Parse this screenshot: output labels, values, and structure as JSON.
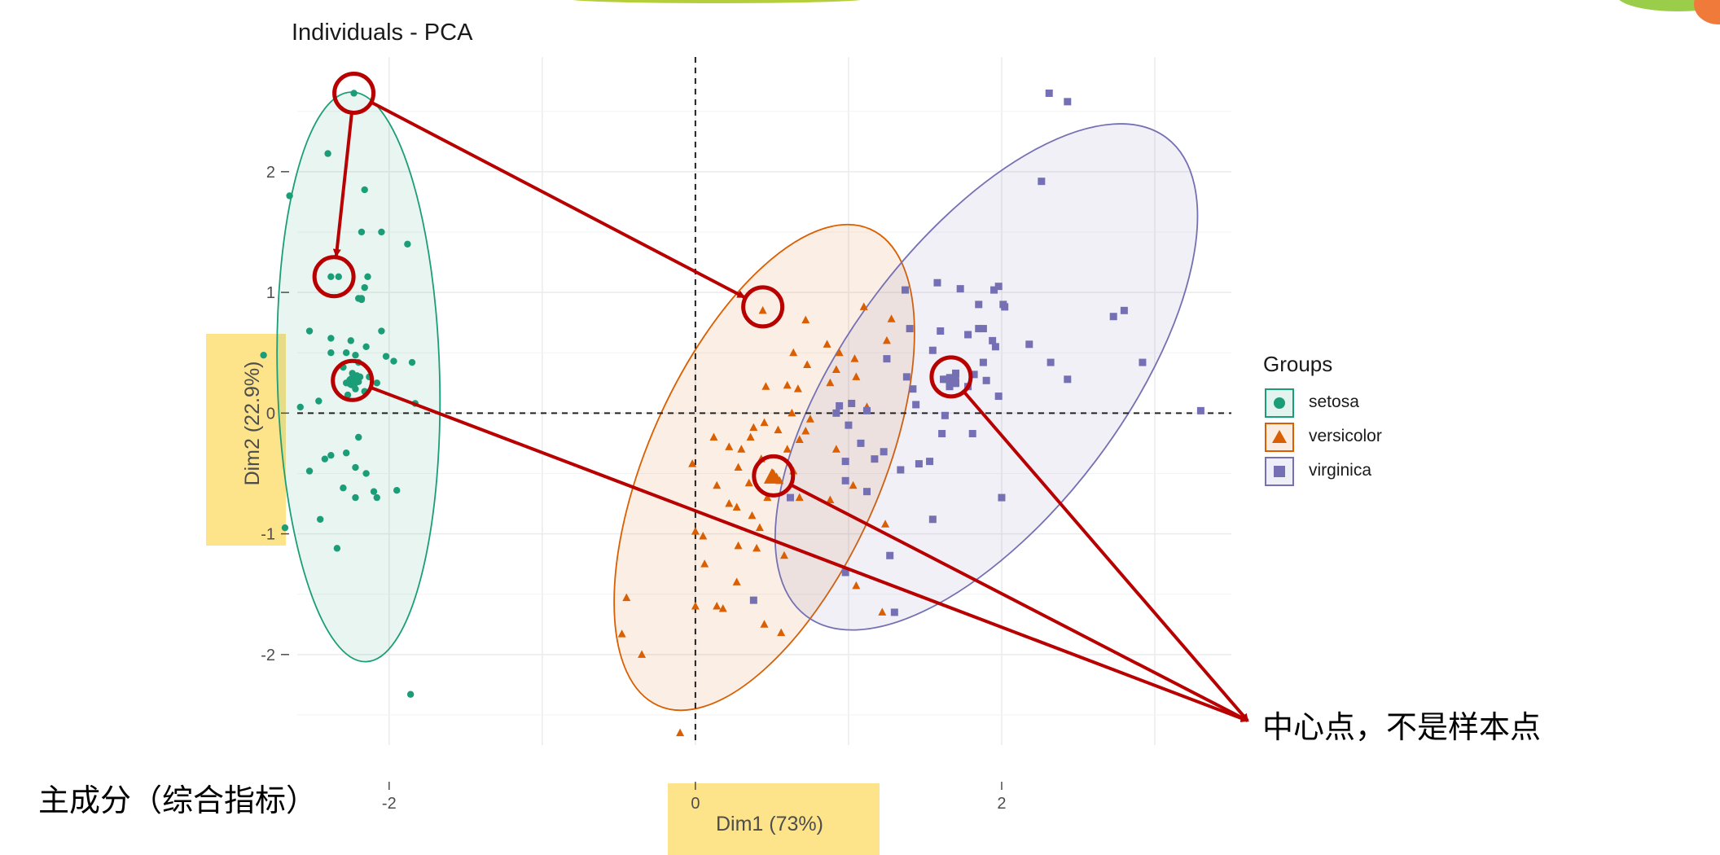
{
  "chart_data": {
    "type": "scatter",
    "title": "Individuals - PCA",
    "xlabel": "Dim1 (73%)",
    "ylabel": "Dim2 (22.9%)",
    "xlim": [
      -2.6,
      3.5
    ],
    "ylim": [
      -2.75,
      2.95
    ],
    "x_ticks": [
      -2,
      0,
      2
    ],
    "y_ticks": [
      -2,
      -1,
      0,
      1,
      2
    ],
    "grid": true,
    "legend_title": "Groups",
    "legend_position": "right",
    "series": [
      {
        "name": "setosa",
        "color": "#1b9e77",
        "marker": "circle",
        "ellipse": {
          "cx": -2.2,
          "cy": 0.3,
          "rx": 0.53,
          "ry": 2.36,
          "angle_deg": -1.5
        },
        "centroid": [
          -2.24,
          0.26
        ],
        "points": [
          [
            -2.23,
            2.65
          ],
          [
            -2.4,
            2.15
          ],
          [
            -2.65,
            1.8
          ],
          [
            -2.16,
            1.85
          ],
          [
            -2.18,
            1.5
          ],
          [
            -2.05,
            1.5
          ],
          [
            -1.88,
            1.4
          ],
          [
            -2.33,
            1.13
          ],
          [
            -2.38,
            1.13
          ],
          [
            -2.14,
            1.13
          ],
          [
            -2.16,
            1.04
          ],
          [
            -2.18,
            0.95
          ],
          [
            -2.2,
            0.95
          ],
          [
            -2.18,
            0.94
          ],
          [
            -2.05,
            0.68
          ],
          [
            -2.52,
            0.68
          ],
          [
            -2.38,
            0.62
          ],
          [
            -2.25,
            0.6
          ],
          [
            -2.15,
            0.55
          ],
          [
            -2.28,
            0.5
          ],
          [
            -2.38,
            0.5
          ],
          [
            -2.22,
            0.48
          ],
          [
            -2.02,
            0.47
          ],
          [
            -1.97,
            0.43
          ],
          [
            -1.85,
            0.42
          ],
          [
            -2.2,
            0.42
          ],
          [
            -2.3,
            0.38
          ],
          [
            -2.24,
            0.33
          ],
          [
            -2.21,
            0.31
          ],
          [
            -2.19,
            0.3
          ],
          [
            -2.25,
            0.28
          ],
          [
            -2.2,
            0.26
          ],
          [
            -2.13,
            0.3
          ],
          [
            -2.28,
            0.25
          ],
          [
            -2.08,
            0.25
          ],
          [
            -2.22,
            0.2
          ],
          [
            -2.16,
            0.18
          ],
          [
            -2.27,
            0.15
          ],
          [
            -2.82,
            0.48
          ],
          [
            -2.46,
            0.1
          ],
          [
            -1.83,
            0.08
          ],
          [
            -2.58,
            0.05
          ],
          [
            -2.2,
            -0.2
          ],
          [
            -2.38,
            -0.35
          ],
          [
            -2.42,
            -0.38
          ],
          [
            -2.52,
            -0.48
          ],
          [
            -2.28,
            -0.33
          ],
          [
            -2.15,
            -0.5
          ],
          [
            -2.22,
            -0.45
          ],
          [
            -2.1,
            -0.65
          ],
          [
            -2.08,
            -0.7
          ],
          [
            -2.22,
            -0.7
          ],
          [
            -1.95,
            -0.64
          ],
          [
            -2.3,
            -0.62
          ],
          [
            -2.68,
            -0.95
          ],
          [
            -2.45,
            -0.88
          ],
          [
            -2.34,
            -1.12
          ],
          [
            -1.86,
            -2.33
          ]
        ]
      },
      {
        "name": "versicolor",
        "color": "#d95f02",
        "marker": "triangle",
        "ellipse": {
          "cx": 0.45,
          "cy": -0.45,
          "rx": 0.76,
          "ry": 2.16,
          "angle_deg": 24
        },
        "centroid": [
          0.5,
          -0.53
        ],
        "points": [
          [
            0.44,
            0.85
          ],
          [
            1.1,
            0.88
          ],
          [
            0.72,
            0.77
          ],
          [
            1.28,
            0.78
          ],
          [
            1.25,
            0.6
          ],
          [
            0.86,
            0.57
          ],
          [
            0.94,
            0.5
          ],
          [
            0.64,
            0.5
          ],
          [
            1.04,
            0.45
          ],
          [
            0.73,
            0.4
          ],
          [
            0.92,
            0.36
          ],
          [
            1.05,
            0.3
          ],
          [
            0.88,
            0.25
          ],
          [
            0.6,
            0.23
          ],
          [
            0.46,
            0.22
          ],
          [
            0.67,
            0.2
          ],
          [
            1.12,
            0.05
          ],
          [
            0.63,
            0.0
          ],
          [
            0.75,
            -0.05
          ],
          [
            0.45,
            -0.08
          ],
          [
            0.38,
            -0.12
          ],
          [
            0.54,
            -0.14
          ],
          [
            0.72,
            -0.15
          ],
          [
            0.68,
            -0.22
          ],
          [
            0.36,
            -0.2
          ],
          [
            0.12,
            -0.2
          ],
          [
            0.6,
            -0.3
          ],
          [
            0.3,
            -0.3
          ],
          [
            0.22,
            -0.28
          ],
          [
            0.92,
            -0.3
          ],
          [
            0.43,
            -0.38
          ],
          [
            -0.02,
            -0.42
          ],
          [
            0.28,
            -0.45
          ],
          [
            0.64,
            -0.48
          ],
          [
            0.35,
            -0.58
          ],
          [
            0.14,
            -0.6
          ],
          [
            1.03,
            -0.6
          ],
          [
            0.47,
            -0.7
          ],
          [
            0.68,
            -0.7
          ],
          [
            0.88,
            -0.72
          ],
          [
            0.22,
            -0.75
          ],
          [
            0.27,
            -0.78
          ],
          [
            0.37,
            -0.85
          ],
          [
            0.42,
            -0.95
          ],
          [
            1.24,
            -0.92
          ],
          [
            0.0,
            -0.98
          ],
          [
            0.05,
            -1.02
          ],
          [
            0.28,
            -1.1
          ],
          [
            0.4,
            -1.12
          ],
          [
            0.58,
            -1.18
          ],
          [
            0.06,
            -1.25
          ],
          [
            0.27,
            -1.4
          ],
          [
            0.18,
            -1.62
          ],
          [
            -0.45,
            -1.53
          ],
          [
            0.0,
            -1.6
          ],
          [
            0.14,
            -1.6
          ],
          [
            1.05,
            -1.43
          ],
          [
            0.45,
            -1.75
          ],
          [
            0.56,
            -1.82
          ],
          [
            -0.48,
            -1.83
          ],
          [
            -0.35,
            -2.0
          ],
          [
            -0.1,
            -2.65
          ],
          [
            1.22,
            -1.65
          ],
          [
            0.51,
            -0.5
          ],
          [
            0.53,
            -0.53
          ],
          [
            0.55,
            -0.56
          ]
        ]
      },
      {
        "name": "virginica",
        "color": "#7570b3",
        "marker": "square",
        "ellipse": {
          "cx": 1.9,
          "cy": 0.3,
          "rx": 0.9,
          "ry": 2.48,
          "angle_deg": 37
        },
        "centroid": [
          1.68,
          0.27
        ],
        "points": [
          [
            2.31,
            2.65
          ],
          [
            2.43,
            2.58
          ],
          [
            2.26,
            1.92
          ],
          [
            1.58,
            1.08
          ],
          [
            1.73,
            1.03
          ],
          [
            1.95,
            1.02
          ],
          [
            1.98,
            1.05
          ],
          [
            1.37,
            1.02
          ],
          [
            2.01,
            0.9
          ],
          [
            2.02,
            0.88
          ],
          [
            1.85,
            0.9
          ],
          [
            2.8,
            0.85
          ],
          [
            2.73,
            0.8
          ],
          [
            1.85,
            0.7
          ],
          [
            1.88,
            0.7
          ],
          [
            1.4,
            0.7
          ],
          [
            1.6,
            0.68
          ],
          [
            1.78,
            0.65
          ],
          [
            1.94,
            0.6
          ],
          [
            2.18,
            0.57
          ],
          [
            1.96,
            0.55
          ],
          [
            1.55,
            0.52
          ],
          [
            1.25,
            0.45
          ],
          [
            2.32,
            0.42
          ],
          [
            1.88,
            0.42
          ],
          [
            2.92,
            0.42
          ],
          [
            1.82,
            0.32
          ],
          [
            1.38,
            0.3
          ],
          [
            2.43,
            0.28
          ],
          [
            1.62,
            0.28
          ],
          [
            1.9,
            0.27
          ],
          [
            1.64,
            0.28
          ],
          [
            1.7,
            0.25
          ],
          [
            1.78,
            0.22
          ],
          [
            1.42,
            0.2
          ],
          [
            1.98,
            0.14
          ],
          [
            1.02,
            0.08
          ],
          [
            0.94,
            0.06
          ],
          [
            0.92,
            0.0
          ],
          [
            1.12,
            0.02
          ],
          [
            1.63,
            -0.02
          ],
          [
            1.44,
            0.07
          ],
          [
            1.0,
            -0.1
          ],
          [
            1.08,
            -0.25
          ],
          [
            1.23,
            -0.32
          ],
          [
            1.81,
            -0.17
          ],
          [
            1.61,
            -0.17
          ],
          [
            1.17,
            -0.38
          ],
          [
            0.98,
            -0.4
          ],
          [
            1.53,
            -0.4
          ],
          [
            1.34,
            -0.47
          ],
          [
            1.46,
            -0.42
          ],
          [
            0.98,
            -0.56
          ],
          [
            1.12,
            -0.65
          ],
          [
            2.0,
            -0.7
          ],
          [
            0.62,
            -0.7
          ],
          [
            1.55,
            -0.88
          ],
          [
            1.27,
            -1.18
          ],
          [
            0.98,
            -1.32
          ],
          [
            0.38,
            -1.55
          ],
          [
            1.3,
            -1.65
          ],
          [
            3.3,
            0.02
          ],
          [
            1.7,
            0.33
          ],
          [
            1.66,
            0.22
          ]
        ]
      }
    ]
  },
  "annotations": {
    "centroid_note": "中心点，不是样本点",
    "pc_note": "主成分（综合指标）",
    "arrow_color": "#b80000"
  }
}
